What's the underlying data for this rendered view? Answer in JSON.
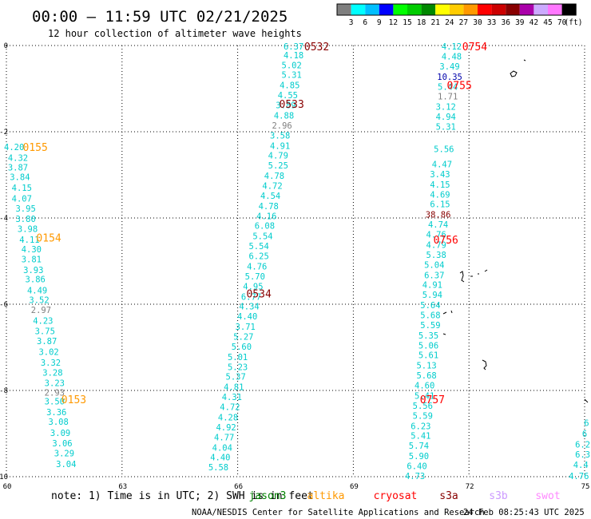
{
  "header": {
    "title": "00:00 – 11:59 UTC 02/21/2025",
    "subtitle": "12 hour collection of altimeter wave heights"
  },
  "legend": {
    "unit": "(ft)",
    "ticks": [
      "3",
      "6",
      "9",
      "12",
      "15",
      "18",
      "21",
      "24",
      "27",
      "30",
      "33",
      "36",
      "39",
      "42",
      "45",
      "70"
    ],
    "colors": [
      "#7f7f7f",
      "#00ffff",
      "#00bfff",
      "#0000ff",
      "#00ff00",
      "#00cc00",
      "#008800",
      "#ffff00",
      "#ffcc00",
      "#ff9900",
      "#ff0000",
      "#cc0000",
      "#880000",
      "#aa00aa",
      "#ccaaff",
      "#ff77ff",
      "#000000"
    ]
  },
  "axes": {
    "lon_labels": [
      {
        "text": "60",
        "lon": 60
      },
      {
        "text": "63",
        "lon": 63
      },
      {
        "text": "66",
        "lon": 66
      },
      {
        "text": "69",
        "lon": 69
      },
      {
        "text": "72",
        "lon": 72
      },
      {
        "text": "75",
        "lon": 75
      }
    ],
    "lat_labels": [
      {
        "text": "0",
        "lat": 0
      },
      {
        "text": "-2",
        "lat": -2
      },
      {
        "text": "-4",
        "lat": -4
      },
      {
        "text": "-6",
        "lat": -6
      },
      {
        "text": "-8",
        "lat": -8
      },
      {
        "text": "-10",
        "lat": -10
      }
    ]
  },
  "footer": {
    "note": "note: 1) Time is in UTC; 2) SWH is in feet",
    "satellites": [
      {
        "name": "jason3",
        "color": "#008000"
      },
      {
        "name": "altika",
        "color": "#ff9900"
      },
      {
        "name": "cryosat",
        "color": "#ff0000"
      },
      {
        "name": "s3a",
        "color": "#880000"
      },
      {
        "name": "s3b",
        "color": "#cc99ff"
      },
      {
        "name": "swot",
        "color": "#ff88ff"
      }
    ],
    "credit": "NOAA/NESDIS Center for Satellite Applications and Research",
    "timestamp": "24 Feb 08:25:43 UTC 2025"
  },
  "chart_data": {
    "type": "map",
    "lon_range": [
      60,
      75
    ],
    "lat_range": [
      -10,
      0
    ],
    "tracks": [
      {
        "satellite": "altika",
        "label_color": "#ff9900",
        "time_labels": [
          {
            "text": "0155",
            "lon": 60.75,
            "lat": -2.35
          },
          {
            "text": "0154",
            "lon": 61.1,
            "lat": -4.45
          },
          {
            "text": "0153",
            "lon": 61.75,
            "lat": -8.2
          }
        ],
        "points": [
          {
            "v": "4.20",
            "lon": 60.2,
            "lat": -2.35
          },
          {
            "v": "4.32",
            "lon": 60.3,
            "lat": -2.6
          },
          {
            "v": "3.87",
            "lon": 60.3,
            "lat": -2.82
          },
          {
            "v": "3.84",
            "lon": 60.35,
            "lat": -3.05
          },
          {
            "v": "4.15",
            "lon": 60.4,
            "lat": -3.3
          },
          {
            "v": "4.07",
            "lon": 60.4,
            "lat": -3.55
          },
          {
            "v": "3.95",
            "lon": 60.5,
            "lat": -3.78
          },
          {
            "v": "3.80",
            "lon": 60.5,
            "lat": -4.02
          },
          {
            "v": "3.98",
            "lon": 60.55,
            "lat": -4.25
          },
          {
            "v": "4.11",
            "lon": 60.6,
            "lat": -4.5
          },
          {
            "v": "4.30",
            "lon": 60.65,
            "lat": -4.72
          },
          {
            "v": "3.81",
            "lon": 60.65,
            "lat": -4.95
          },
          {
            "v": "3.93",
            "lon": 60.7,
            "lat": -5.2
          },
          {
            "v": "3.86",
            "lon": 60.75,
            "lat": -5.42
          },
          {
            "v": "4.49",
            "lon": 60.8,
            "lat": -5.68
          },
          {
            "v": "3.52",
            "lon": 60.85,
            "lat": -5.9
          },
          {
            "v": "2.97",
            "lon": 60.9,
            "lat": -6.13
          },
          {
            "v": "4.23",
            "lon": 60.95,
            "lat": -6.38
          },
          {
            "v": "3.75",
            "lon": 61.0,
            "lat": -6.62
          },
          {
            "v": "3.87",
            "lon": 61.05,
            "lat": -6.85
          },
          {
            "v": "3.02",
            "lon": 61.1,
            "lat": -7.1
          },
          {
            "v": "3.32",
            "lon": 61.15,
            "lat": -7.35
          },
          {
            "v": "3.28",
            "lon": 61.2,
            "lat": -7.58
          },
          {
            "v": "3.23",
            "lon": 61.25,
            "lat": -7.82
          },
          {
            "v": "2.93",
            "lon": 61.25,
            "lat": -8.05
          },
          {
            "v": "3.50",
            "lon": 61.25,
            "lat": -8.25
          },
          {
            "v": "3.36",
            "lon": 61.3,
            "lat": -8.5
          },
          {
            "v": "3.08",
            "lon": 61.35,
            "lat": -8.72
          },
          {
            "v": "3.09",
            "lon": 61.4,
            "lat": -8.98
          },
          {
            "v": "3.06",
            "lon": 61.45,
            "lat": -9.22
          },
          {
            "v": "3.29",
            "lon": 61.5,
            "lat": -9.45
          },
          {
            "v": "3.04",
            "lon": 61.55,
            "lat": -9.7
          }
        ]
      },
      {
        "satellite": "s3a",
        "label_color": "#880000",
        "time_labels": [
          {
            "text": "0532",
            "lon": 68.05,
            "lat": -0.02
          },
          {
            "text": "0533",
            "lon": 67.4,
            "lat": -1.35
          },
          {
            "text": "0534",
            "lon": 66.55,
            "lat": -5.75
          }
        ],
        "points": [
          {
            "v": "6.37",
            "lon": 67.45,
            "lat": -0.02
          },
          {
            "v": "4.18",
            "lon": 67.45,
            "lat": -0.22
          },
          {
            "v": "5.02",
            "lon": 67.4,
            "lat": -0.45
          },
          {
            "v": "5.31",
            "lon": 67.4,
            "lat": -0.68
          },
          {
            "v": "4.85",
            "lon": 67.35,
            "lat": -0.92
          },
          {
            "v": "4.55",
            "lon": 67.3,
            "lat": -1.15
          },
          {
            "v": "3.89",
            "lon": 67.25,
            "lat": -1.38
          },
          {
            "v": "4.88",
            "lon": 67.2,
            "lat": -1.62
          },
          {
            "v": "2.96",
            "lon": 67.15,
            "lat": -1.85
          },
          {
            "v": "3.58",
            "lon": 67.1,
            "lat": -2.08
          },
          {
            "v": "4.91",
            "lon": 67.1,
            "lat": -2.32
          },
          {
            "v": "4.79",
            "lon": 67.05,
            "lat": -2.55
          },
          {
            "v": "5.25",
            "lon": 67.05,
            "lat": -2.78
          },
          {
            "v": "4.78",
            "lon": 66.95,
            "lat": -3.02
          },
          {
            "v": "4.72",
            "lon": 66.9,
            "lat": -3.25
          },
          {
            "v": "4.54",
            "lon": 66.85,
            "lat": -3.48
          },
          {
            "v": "4.78",
            "lon": 66.8,
            "lat": -3.72
          },
          {
            "v": "4.16",
            "lon": 66.75,
            "lat": -3.95
          },
          {
            "v": "6.08",
            "lon": 66.7,
            "lat": -4.18
          },
          {
            "v": "5.54",
            "lon": 66.65,
            "lat": -4.42
          },
          {
            "v": "5.54",
            "lon": 66.55,
            "lat": -4.65
          },
          {
            "v": "6.25",
            "lon": 66.55,
            "lat": -4.88
          },
          {
            "v": "4.76",
            "lon": 66.5,
            "lat": -5.12
          },
          {
            "v": "5.70",
            "lon": 66.45,
            "lat": -5.35
          },
          {
            "v": "4.95",
            "lon": 66.4,
            "lat": -5.58
          },
          {
            "v": "6.77",
            "lon": 66.35,
            "lat": -5.82
          },
          {
            "v": "4.34",
            "lon": 66.3,
            "lat": -6.05
          },
          {
            "v": "4.40",
            "lon": 66.25,
            "lat": -6.28
          },
          {
            "v": "3.71",
            "lon": 66.2,
            "lat": -6.52
          },
          {
            "v": "5.27",
            "lon": 66.15,
            "lat": -6.75
          },
          {
            "v": "5.60",
            "lon": 66.1,
            "lat": -6.98
          },
          {
            "v": "5.01",
            "lon": 66.0,
            "lat": -7.22
          },
          {
            "v": "5.23",
            "lon": 66.0,
            "lat": -7.45
          },
          {
            "v": "5.37",
            "lon": 65.95,
            "lat": -7.68
          },
          {
            "v": "4.81",
            "lon": 65.9,
            "lat": -7.92
          },
          {
            "v": "4.31",
            "lon": 65.85,
            "lat": -8.15
          },
          {
            "v": "4.72",
            "lon": 65.8,
            "lat": -8.38
          },
          {
            "v": "4.28",
            "lon": 65.75,
            "lat": -8.62
          },
          {
            "v": "4.92",
            "lon": 65.7,
            "lat": -8.85
          },
          {
            "v": "4.77",
            "lon": 65.65,
            "lat": -9.08
          },
          {
            "v": "4.04",
            "lon": 65.6,
            "lat": -9.32
          },
          {
            "v": "4.40",
            "lon": 65.55,
            "lat": -9.55
          },
          {
            "v": "5.58",
            "lon": 65.5,
            "lat": -9.78
          }
        ]
      },
      {
        "satellite": "cryosat",
        "label_color": "#ff0000",
        "time_labels": [
          {
            "text": "0754",
            "lon": 72.15,
            "lat": -0.02
          },
          {
            "text": "0755",
            "lon": 71.75,
            "lat": -0.92
          },
          {
            "text": "0756",
            "lon": 71.4,
            "lat": -4.5
          },
          {
            "text": "0757",
            "lon": 71.05,
            "lat": -8.2
          }
        ],
        "points": [
          {
            "v": "4.12",
            "lon": 71.55,
            "lat": -0.02
          },
          {
            "v": "4.48",
            "lon": 71.55,
            "lat": -0.25
          },
          {
            "v": "3.49",
            "lon": 71.5,
            "lat": -0.48
          },
          {
            "v": "10.35",
            "lon": 71.5,
            "lat": -0.72
          },
          {
            "v": "5.44",
            "lon": 71.45,
            "lat": -0.95
          },
          {
            "v": "1.71",
            "lon": 71.45,
            "lat": -1.18
          },
          {
            "v": "3.12",
            "lon": 71.4,
            "lat": -1.42
          },
          {
            "v": "4.94",
            "lon": 71.4,
            "lat": -1.65
          },
          {
            "v": "5.31",
            "lon": 71.4,
            "lat": -1.88
          },
          {
            "v": "5.56",
            "lon": 71.35,
            "lat": -2.4
          },
          {
            "v": "4.47",
            "lon": 71.3,
            "lat": -2.75
          },
          {
            "v": "3.43",
            "lon": 71.25,
            "lat": -2.98
          },
          {
            "v": "4.15",
            "lon": 71.25,
            "lat": -3.22
          },
          {
            "v": "4.69",
            "lon": 71.25,
            "lat": -3.45
          },
          {
            "v": "6.15",
            "lon": 71.25,
            "lat": -3.68
          },
          {
            "v": "38.86",
            "lon": 71.2,
            "lat": -3.92
          },
          {
            "v": "4.74",
            "lon": 71.2,
            "lat": -4.15
          },
          {
            "v": "4.76",
            "lon": 71.15,
            "lat": -4.38
          },
          {
            "v": "4.79",
            "lon": 71.15,
            "lat": -4.62
          },
          {
            "v": "5.38",
            "lon": 71.15,
            "lat": -4.85
          },
          {
            "v": "5.04",
            "lon": 71.1,
            "lat": -5.08
          },
          {
            "v": "6.37",
            "lon": 71.1,
            "lat": -5.32
          },
          {
            "v": "4.91",
            "lon": 71.05,
            "lat": -5.55
          },
          {
            "v": "5.94",
            "lon": 71.05,
            "lat": -5.78
          },
          {
            "v": "5.64",
            "lon": 71.0,
            "lat": -6.02
          },
          {
            "v": "5.68",
            "lon": 71.0,
            "lat": -6.25
          },
          {
            "v": "5.59",
            "lon": 71.0,
            "lat": -6.48
          },
          {
            "v": "5.35",
            "lon": 70.95,
            "lat": -6.72
          },
          {
            "v": "5.06",
            "lon": 70.95,
            "lat": -6.95
          },
          {
            "v": "5.61",
            "lon": 70.95,
            "lat": -7.18
          },
          {
            "v": "5.13",
            "lon": 70.9,
            "lat": -7.42
          },
          {
            "v": "5.68",
            "lon": 70.9,
            "lat": -7.65
          },
          {
            "v": "4.60",
            "lon": 70.85,
            "lat": -7.88
          },
          {
            "v": "5.41",
            "lon": 70.85,
            "lat": -8.12
          },
          {
            "v": "5.56",
            "lon": 70.8,
            "lat": -8.35
          },
          {
            "v": "5.59",
            "lon": 70.8,
            "lat": -8.58
          },
          {
            "v": "6.23",
            "lon": 70.75,
            "lat": -8.82
          },
          {
            "v": "5.41",
            "lon": 70.75,
            "lat": -9.05
          },
          {
            "v": "5.74",
            "lon": 70.7,
            "lat": -9.28
          },
          {
            "v": "5.90",
            "lon": 70.7,
            "lat": -9.52
          },
          {
            "v": "6.40",
            "lon": 70.65,
            "lat": -9.75
          },
          {
            "v": "4.73",
            "lon": 70.6,
            "lat": -9.98
          }
        ]
      },
      {
        "satellite": "cryosat-edge",
        "label_color": "#ff0000",
        "time_labels": [],
        "points": [
          {
            "v": "6",
            "lon": 75.05,
            "lat": -8.75
          },
          {
            "v": "6",
            "lon": 75.0,
            "lat": -9.0
          },
          {
            "v": "6.2",
            "lon": 74.95,
            "lat": -9.25
          },
          {
            "v": "6.3",
            "lon": 74.95,
            "lat": -9.48
          },
          {
            "v": "4.4",
            "lon": 74.9,
            "lat": -9.72
          },
          {
            "v": "4.76",
            "lon": 74.85,
            "lat": -9.98
          }
        ]
      }
    ]
  }
}
